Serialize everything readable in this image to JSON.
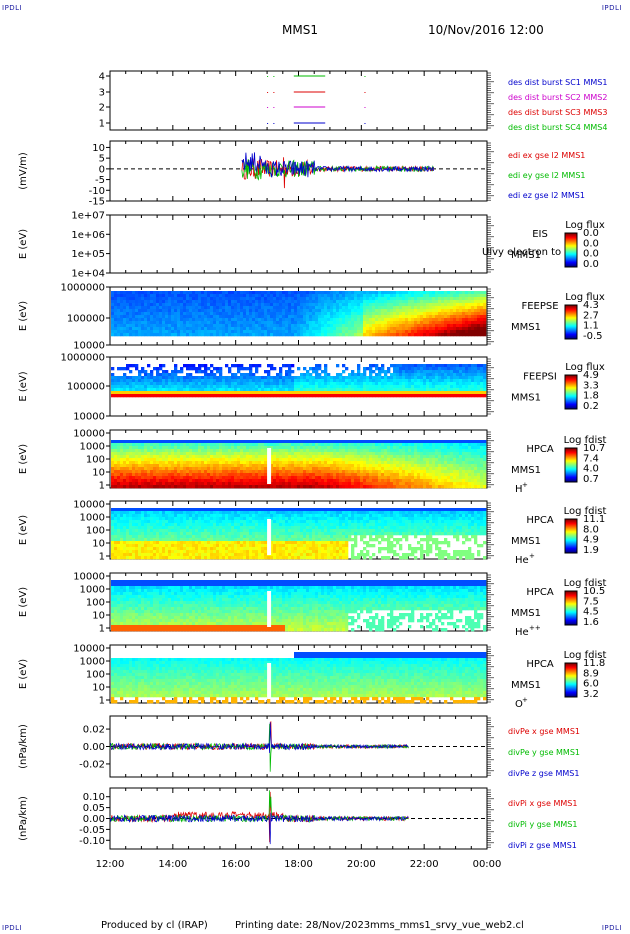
{
  "corner_tag": "IPDLI",
  "header": {
    "spacecraft": "MMS1",
    "datetime": "10/Nov/2016 12:00"
  },
  "footer": {
    "produced_by": "Produced by cl (IRAP)",
    "printing_date": "Printing date: 28/Nov/2023",
    "filename": "mms_mms1_srvy_vue_web2.cl"
  },
  "chart_data": [
    {
      "id": "burst",
      "type": "line",
      "ylabel": "",
      "yticks": [
        "1",
        "2",
        "3",
        "4"
      ],
      "series": [
        {
          "name": "des dist burst SC1 MMS1",
          "color": "#0000cc"
        },
        {
          "name": "des dist burst SC2 MMS2",
          "color": "#cc00cc"
        },
        {
          "name": "des dist burst SC3 MMS3",
          "color": "#dd0000"
        },
        {
          "name": "des dist burst SC4 MMS4",
          "color": "#00bb00"
        }
      ],
      "intervals_hours": [
        [
          17.85,
          18.85
        ]
      ]
    },
    {
      "id": "edi",
      "type": "line",
      "ylabel": "(mV/m)",
      "yticks": [
        "10",
        "5",
        "0",
        "-5",
        "-10",
        "-15"
      ],
      "ylim": [
        -15,
        13
      ],
      "series": [
        {
          "name": "edi ex gse l2 MMS1",
          "color": "#dd0000"
        },
        {
          "name": "edi ey gse l2 MMS1",
          "color": "#00bb00"
        },
        {
          "name": "edi ez gse l2 MMS1",
          "color": "#0000cc"
        }
      ],
      "coverage_hours": [
        16.2,
        22.3
      ]
    },
    {
      "id": "eis",
      "type": "heatmap",
      "ylabel": "E (eV)",
      "yticks": [
        "1e+07",
        "1e+06",
        "1e+05",
        "1e+04"
      ],
      "instrument": "EIS",
      "instrument_sub": "MMS1",
      "overlay": "Ulvy electron to",
      "colorbar_title": "Log flux",
      "colorbar_ticks": [
        "0.0",
        "0.0",
        "0.0",
        "0.0"
      ]
    },
    {
      "id": "feepse",
      "type": "heatmap",
      "ylabel": "E (eV)",
      "yticks": [
        "1000000",
        "100000",
        "10000"
      ],
      "instrument": "FEEPSE",
      "instrument_sub": "MMS1",
      "colorbar_title": "Log flux",
      "colorbar_ticks": [
        "4.3",
        "2.7",
        "1.1",
        "-0.5"
      ]
    },
    {
      "id": "feepsi",
      "type": "heatmap",
      "ylabel": "E (eV)",
      "yticks": [
        "1000000",
        "100000",
        "10000"
      ],
      "instrument": "FEEPSI",
      "instrument_sub": "MMS1",
      "colorbar_title": "Log flux",
      "colorbar_ticks": [
        "4.9",
        "3.3",
        "1.8",
        "0.2"
      ]
    },
    {
      "id": "hpca_h",
      "type": "heatmap",
      "ylabel": "E (eV)",
      "yticks": [
        "10000",
        "1000",
        "100",
        "10",
        "1"
      ],
      "instrument": "HPCA",
      "instrument_sub": "MMS1",
      "species": "H",
      "species_charge": "+",
      "colorbar_title": "Log fdist",
      "colorbar_ticks": [
        "10.7",
        "7.4",
        "4.0",
        "0.7"
      ]
    },
    {
      "id": "hpca_he",
      "type": "heatmap",
      "ylabel": "E (eV)",
      "yticks": [
        "10000",
        "1000",
        "100",
        "10",
        "1"
      ],
      "instrument": "HPCA",
      "instrument_sub": "MMS1",
      "species": "He",
      "species_charge": "+",
      "colorbar_title": "Log fdist",
      "colorbar_ticks": [
        "11.1",
        "8.0",
        "4.9",
        "1.9"
      ]
    },
    {
      "id": "hpca_he2",
      "type": "heatmap",
      "ylabel": "E (eV)",
      "yticks": [
        "10000",
        "1000",
        "100",
        "10",
        "1"
      ],
      "instrument": "HPCA",
      "instrument_sub": "MMS1",
      "species": "He",
      "species_charge": "++",
      "colorbar_title": "Log fdist",
      "colorbar_ticks": [
        "10.5",
        "7.5",
        "4.5",
        "1.6"
      ]
    },
    {
      "id": "hpca_o",
      "type": "heatmap",
      "ylabel": "E (eV)",
      "yticks": [
        "10000",
        "1000",
        "100",
        "10",
        "1"
      ],
      "instrument": "HPCA",
      "instrument_sub": "MMS1",
      "species": "O",
      "species_charge": "+",
      "colorbar_title": "Log fdist",
      "colorbar_ticks": [
        "11.8",
        "8.9",
        "6.0",
        "3.2"
      ]
    },
    {
      "id": "divpe",
      "type": "line",
      "ylabel": "(nPa/km)",
      "yticks": [
        "0.02",
        "0.00",
        "-0.02"
      ],
      "ylim": [
        -0.035,
        0.035
      ],
      "series": [
        {
          "name": "divPe x gse MMS1",
          "color": "#dd0000"
        },
        {
          "name": "divPe y gse MMS1",
          "color": "#00bb00"
        },
        {
          "name": "divPe z gse MMS1",
          "color": "#0000cc"
        }
      ],
      "coverage_hours": [
        12.0,
        21.5
      ]
    },
    {
      "id": "divpi",
      "type": "line",
      "ylabel": "(nPa/km)",
      "yticks": [
        "0.10",
        "0.05",
        "0.00",
        "-0.05",
        "-0.10"
      ],
      "ylim": [
        -0.14,
        0.14
      ],
      "series": [
        {
          "name": "divPi x gse MMS1",
          "color": "#dd0000"
        },
        {
          "name": "divPi y gse MMS1",
          "color": "#00bb00"
        },
        {
          "name": "divPi z gse MMS1",
          "color": "#0000cc"
        }
      ],
      "coverage_hours": [
        12.0,
        21.5
      ]
    }
  ],
  "time_axis": {
    "ticks": [
      "12:00",
      "14:00",
      "16:00",
      "18:00",
      "20:00",
      "22:00",
      "00:00"
    ],
    "range_hours": [
      12,
      24
    ]
  }
}
